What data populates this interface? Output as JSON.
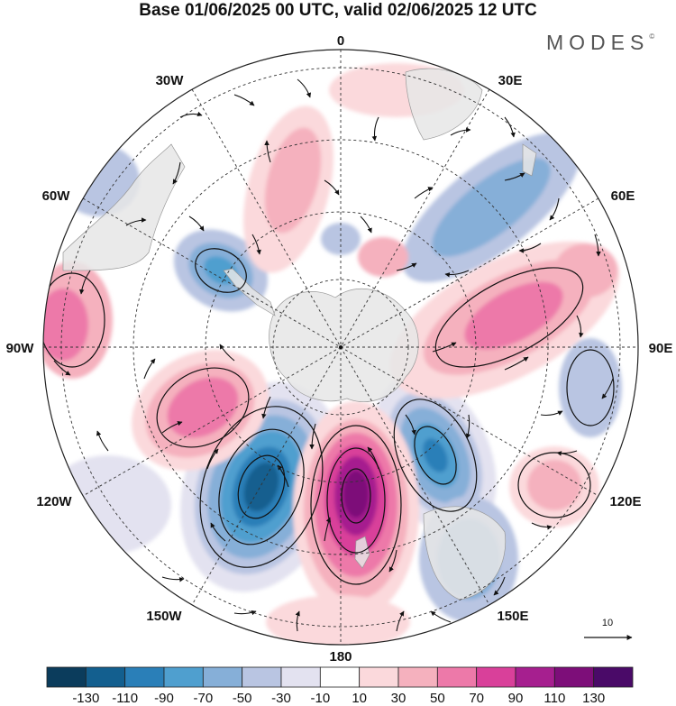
{
  "header": {
    "title": "Base 01/06/2025 00 UTC, valid 02/06/2025 12 UTC",
    "brand": "MODES",
    "brand_mark": "©"
  },
  "map": {
    "projection": "south-polar-stereographic",
    "longitude_labels": {
      "top": "0",
      "bottom": "180",
      "left": "90W",
      "right": "90E",
      "upper_left_30": "30W",
      "upper_right_30": "30E",
      "left_60": "60W",
      "right_60": "60E",
      "lower_left_120": "120W",
      "lower_right_120": "120E",
      "lower_left_150": "150W",
      "lower_right_150": "150E"
    },
    "vector_scale_label": "10",
    "colors": {
      "land": "#ececec",
      "grid": "#333333",
      "streamline": "#111111"
    }
  },
  "colorbar": {
    "ticks": [
      "-130",
      "-110",
      "-90",
      "-70",
      "-50",
      "-30",
      "-10",
      "10",
      "30",
      "50",
      "70",
      "90",
      "110",
      "130"
    ],
    "colors": [
      "#0b3c5c",
      "#135f8f",
      "#2a7fb8",
      "#4f9fcf",
      "#86afd8",
      "#b9c5e2",
      "#e3e2f0",
      "#ffffff",
      "#fbd9dc",
      "#f5b1be",
      "#ed79a9",
      "#d9409a",
      "#a61f8f",
      "#7d0e79",
      "#4a0a68"
    ]
  }
}
